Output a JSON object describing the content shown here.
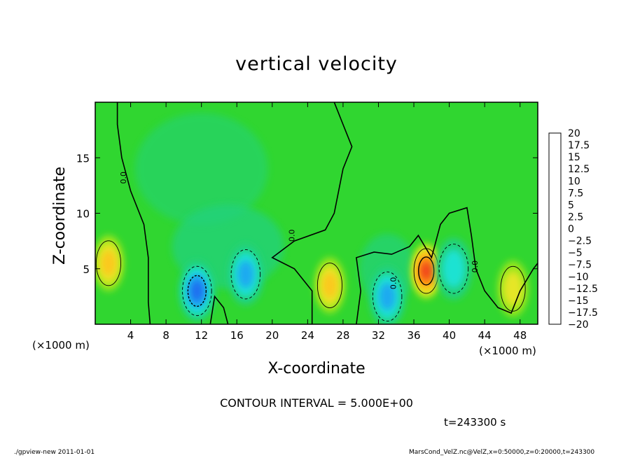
{
  "chart_data": {
    "type": "heatmap",
    "title": "vertical velocity",
    "xlabel": "X-coordinate",
    "ylabel": "Z-coordinate",
    "x_unit": "(×1000 m)",
    "z_unit": "(×1000 m)",
    "xlim": [
      0,
      50
    ],
    "ylim": [
      0,
      20
    ],
    "x_ticks": [
      4,
      8,
      12,
      16,
      20,
      24,
      28,
      32,
      36,
      40,
      44,
      48
    ],
    "y_ticks": [
      5,
      10,
      15
    ],
    "colorbar": {
      "labels": [
        "20",
        "17.5",
        "15",
        "12.5",
        "10",
        "7.5",
        "5",
        "2.5",
        "0",
        "−2.5",
        "−5",
        "−7.5",
        "−10",
        "−12.5",
        "−15",
        "−17.5",
        "−20"
      ],
      "colors": [
        "#f9a0a0",
        "#f56a6a",
        "#ef3a22",
        "#f76a10",
        "#fb9c14",
        "#fcc81a",
        "#e6e626",
        "#9ae61e",
        "#30d630",
        "#20d27e",
        "#1ee2d2",
        "#1eaaf0",
        "#1e6ef0",
        "#1e36e6",
        "#1418c6",
        "#3010a8",
        "#6a08a8"
      ]
    },
    "features": [
      {
        "sign": "up",
        "x": 26.5,
        "z": 3.5,
        "peak": 8
      },
      {
        "sign": "up",
        "x": 1.5,
        "z": 5.5,
        "peak": 8
      },
      {
        "sign": "up",
        "x": 37.4,
        "z": 4.8,
        "peak": 15
      },
      {
        "sign": "up",
        "x": 47.2,
        "z": 3.2,
        "peak": 5
      },
      {
        "sign": "down",
        "x": 11.5,
        "z": 3.0,
        "peak": -11
      },
      {
        "sign": "down",
        "x": 17.0,
        "z": 4.5,
        "peak": -9
      },
      {
        "sign": "down",
        "x": 33.0,
        "z": 2.5,
        "peak": -9
      },
      {
        "sign": "down",
        "x": 40.5,
        "z": 5.0,
        "peak": -6
      }
    ]
  },
  "labels": {
    "contour_interval": "CONTOUR INTERVAL = 5.000E+00",
    "time": "t=243300 s",
    "footer_left": "./gpview-new  2011-01-01",
    "footer_right": "MarsCond_VelZ.nc@VelZ,x=0:50000,z=0:20000,t=243300",
    "contour_zero_label": "0.0"
  }
}
